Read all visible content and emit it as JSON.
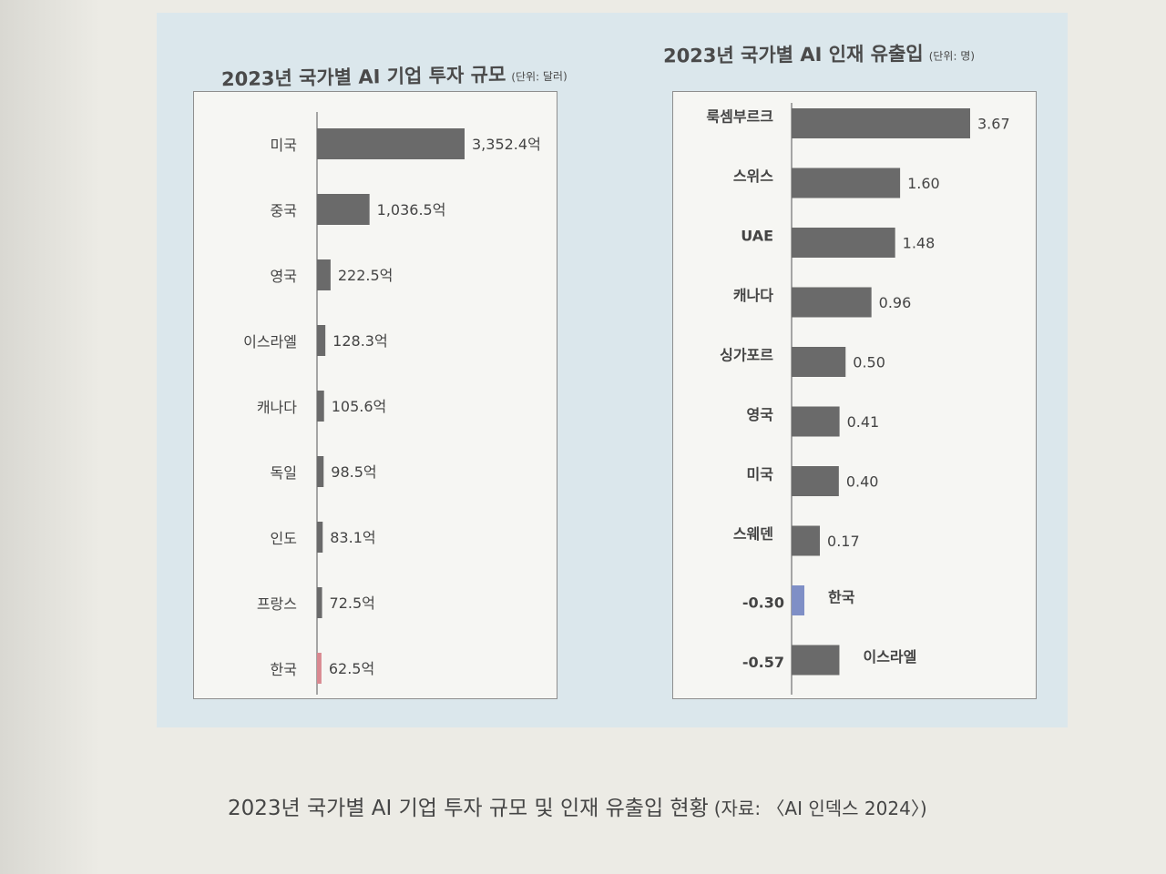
{
  "caption": {
    "text": "2023년 국가별 AI 기업 투자 규모 및 인재 유출입 현황",
    "source": "(자료: 〈AI 인덱스 2024〉)"
  },
  "colors": {
    "bar": "#6a6a6a",
    "korea_investment": "#d98890",
    "korea_talent": "#7f8fc6",
    "panel": "#dbe7ec",
    "plot_bg": "#f6f6f3"
  },
  "chart_data": [
    {
      "type": "bar",
      "orientation": "horizontal",
      "title": "2023년 국가별 AI 기업 투자 규모",
      "unit_note": "(단위: 달러)",
      "categories": [
        "미국",
        "중국",
        "영국",
        "이스라엘",
        "캐나다",
        "독일",
        "인도",
        "프랑스",
        "한국"
      ],
      "values": [
        3352.4,
        1036.5,
        222.5,
        128.3,
        105.6,
        98.5,
        83.1,
        72.5,
        62.5
      ],
      "data_labels": [
        "3,352.4억",
        "1,036.5억",
        "222.5억",
        "128.3억",
        "105.6억",
        "98.5억",
        "83.1억",
        "72.5억",
        "62.5억"
      ],
      "value_unit": "억 달러",
      "highlight": "한국"
    },
    {
      "type": "bar",
      "orientation": "horizontal",
      "title": "2023년 국가별 AI 인재 유출입",
      "unit_note": "(단위: 명)",
      "categories": [
        "룩셈부르크",
        "스위스",
        "UAE",
        "캐나다",
        "싱가포르",
        "영국",
        "미국",
        "스웨덴",
        "한국",
        "이스라엘"
      ],
      "values": [
        3.67,
        1.6,
        1.48,
        0.96,
        0.5,
        0.41,
        0.4,
        0.17,
        -0.3,
        -0.57
      ],
      "data_labels": [
        "3.67",
        "1.60",
        "1.48",
        "0.96",
        "0.50",
        "0.41",
        "0.40",
        "0.17",
        "-0.30",
        "-0.57"
      ],
      "highlight": "한국"
    }
  ]
}
